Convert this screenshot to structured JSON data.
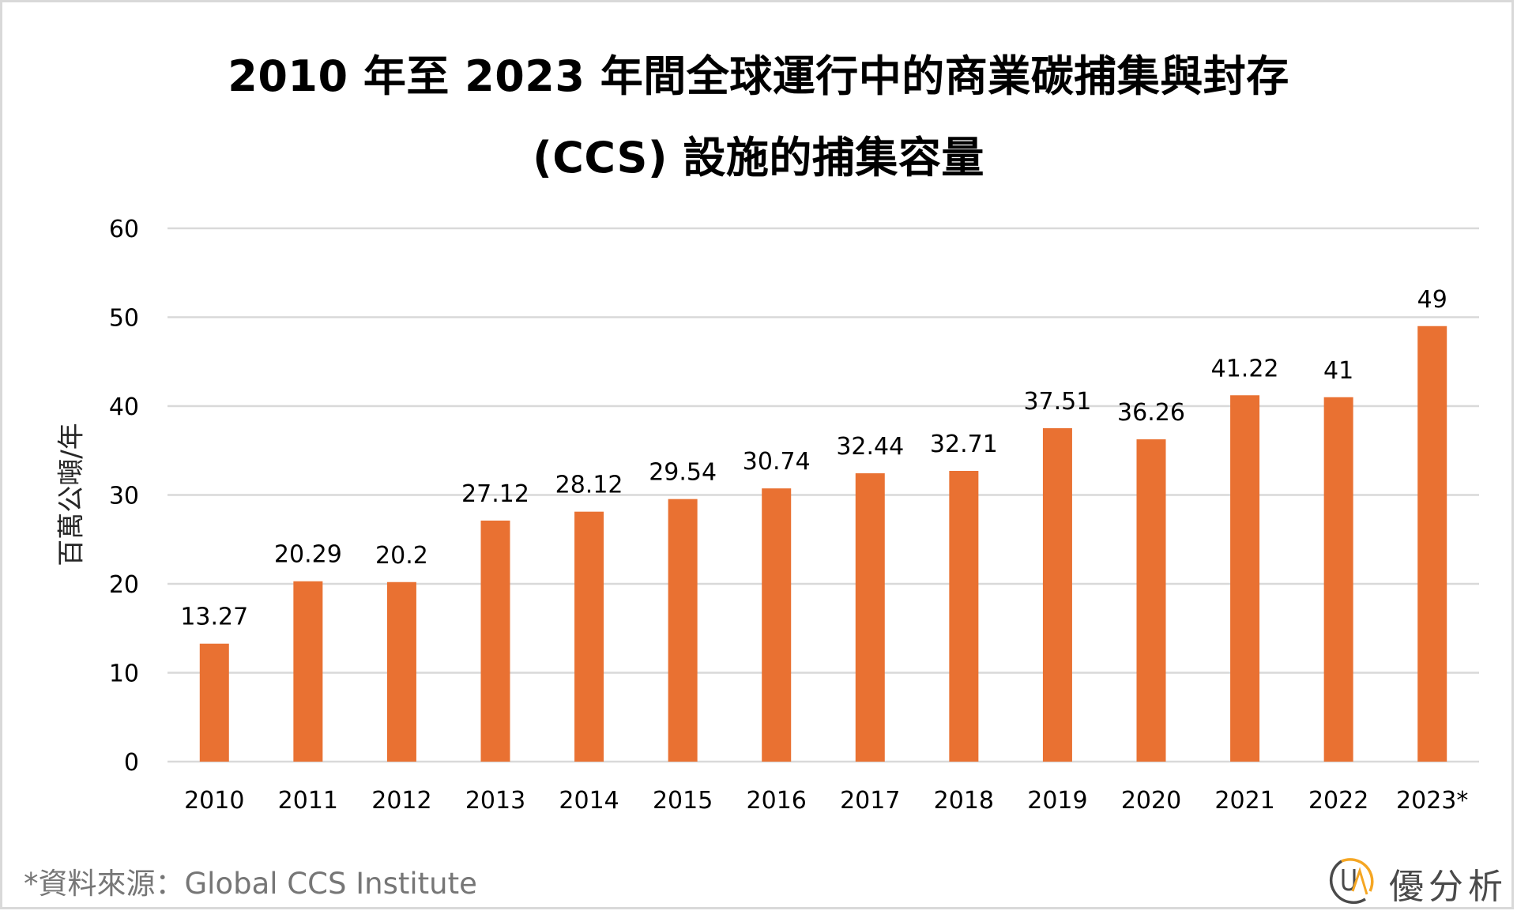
{
  "title_line1": "2010 年至 2023 年間全球運行中的商業碳捕集與封存",
  "title_line2": "(CCS) 設施的捕集容量",
  "source": "*資料來源：Global CCS Institute",
  "logo": {
    "icon": "ua-circle-logo-icon",
    "text": "優分析",
    "accent_color": "#F5A623",
    "text_color": "#4a4a4a"
  },
  "colors": {
    "bar": "#E97132",
    "grid": "#d9d9d9"
  },
  "chart_data": {
    "type": "bar",
    "title": "2010 年至 2023 年間全球運行中的商業碳捕集與封存 (CCS) 設施的捕集容量",
    "xlabel": "",
    "ylabel": "百萬公噸/年",
    "categories": [
      "2010",
      "2011",
      "2012",
      "2013",
      "2014",
      "2015",
      "2016",
      "2017",
      "2018",
      "2019",
      "2020",
      "2021",
      "2022",
      "2023*"
    ],
    "values": [
      13.27,
      20.29,
      20.2,
      27.12,
      28.12,
      29.54,
      30.74,
      32.44,
      32.71,
      37.51,
      36.26,
      41.22,
      41,
      49
    ],
    "data_labels": [
      "13.27",
      "20.29",
      "20.2",
      "27.12",
      "28.12",
      "29.54",
      "30.74",
      "32.44",
      "32.71",
      "37.51",
      "36.26",
      "41.22",
      "41",
      "49"
    ],
    "ylim": [
      0,
      60
    ],
    "yticks": [
      0,
      10,
      20,
      30,
      40,
      50,
      60
    ],
    "ytick_labels": [
      "0",
      "10",
      "20",
      "30",
      "40",
      "50",
      "60"
    ],
    "grid": true,
    "legend": "none"
  }
}
